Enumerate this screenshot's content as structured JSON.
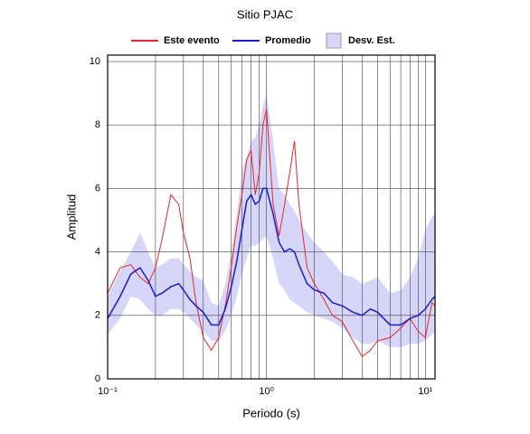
{
  "chart_data": {
    "type": "line",
    "title": "Sitio PJAC",
    "x_label": "Periodo (s)",
    "y_label": "Amplitud",
    "x": [
      0.1,
      0.12,
      0.14,
      0.16,
      0.18,
      0.2,
      0.22,
      0.25,
      0.28,
      0.3,
      0.33,
      0.36,
      0.4,
      0.45,
      0.5,
      0.55,
      0.6,
      0.65,
      0.7,
      0.75,
      0.8,
      0.85,
      0.9,
      0.95,
      1.0,
      1.1,
      1.2,
      1.3,
      1.4,
      1.5,
      1.6,
      1.8,
      2.0,
      2.3,
      2.6,
      3.0,
      3.5,
      4.0,
      4.5,
      5,
      6,
      7,
      8,
      9,
      10,
      11,
      11.5
    ],
    "series": [
      {
        "name": "Este evento",
        "color": "#e8262b",
        "values": [
          2.7,
          3.5,
          3.6,
          3.2,
          3.0,
          3.5,
          4.4,
          5.8,
          5.5,
          4.6,
          3.8,
          2.4,
          1.3,
          0.9,
          1.3,
          2.3,
          3.5,
          4.8,
          5.8,
          6.9,
          7.2,
          5.8,
          6.5,
          8.0,
          8.5,
          5.5,
          4.5,
          5.5,
          6.5,
          7.5,
          5.5,
          3.5,
          3.0,
          2.5,
          2.0,
          1.8,
          1.2,
          0.7,
          0.9,
          1.2,
          1.3,
          1.6,
          1.9,
          1.5,
          1.3,
          2.4,
          2.3
        ]
      },
      {
        "name": "Promedio",
        "color": "#1a1ad6",
        "values": [
          1.9,
          2.6,
          3.3,
          3.5,
          3.1,
          2.6,
          2.7,
          2.9,
          3.0,
          2.8,
          2.5,
          2.3,
          2.1,
          1.7,
          1.7,
          2.2,
          2.9,
          3.7,
          4.7,
          5.6,
          5.8,
          5.5,
          5.6,
          6.0,
          6.0,
          5.2,
          4.3,
          4.0,
          4.1,
          4.0,
          3.6,
          3.0,
          2.8,
          2.7,
          2.4,
          2.3,
          2.1,
          2.0,
          2.2,
          2.1,
          1.7,
          1.7,
          1.9,
          2.0,
          2.2,
          2.5,
          2.6
        ]
      }
    ],
    "band": {
      "name": "Desv. Est.",
      "color": "#d6d6f8",
      "lower": [
        1.4,
        1.9,
        2.6,
        2.5,
        2.2,
        2.0,
        2.0,
        2.2,
        2.2,
        2.1,
        1.9,
        1.7,
        1.5,
        1.2,
        1.2,
        1.5,
        2.0,
        2.6,
        3.3,
        3.8,
        4.2,
        4.2,
        4.3,
        4.4,
        4.5,
        3.8,
        3.0,
        2.8,
        2.5,
        2.4,
        2.3,
        2.1,
        2.0,
        1.9,
        1.8,
        1.6,
        1.3,
        1.1,
        1.1,
        1.2,
        1.0,
        1.0,
        1.1,
        1.1,
        1.2,
        1.4,
        1.5
      ],
      "upper": [
        2.6,
        3.4,
        4.0,
        4.6,
        4.0,
        3.5,
        3.6,
        3.8,
        3.8,
        3.6,
        3.4,
        3.2,
        3.1,
        2.4,
        2.3,
        3.0,
        4.0,
        5.2,
        6.5,
        7.0,
        7.5,
        7.6,
        8.0,
        8.6,
        9.0,
        7.5,
        6.0,
        5.8,
        5.5,
        5.3,
        5.0,
        4.6,
        4.3,
        4.0,
        3.7,
        3.3,
        3.2,
        3.0,
        3.1,
        3.2,
        2.7,
        2.8,
        3.2,
        3.8,
        4.7,
        5.1,
        5.2
      ]
    },
    "log_x": true,
    "xlim": [
      0.1,
      11.5
    ],
    "ylim": [
      0,
      10.2
    ],
    "xticks": [
      {
        "value": 0.1,
        "label": "10⁻¹"
      },
      {
        "value": 1,
        "label": "10⁰"
      },
      {
        "value": 10,
        "label": "10¹"
      }
    ],
    "xminorticks": [
      0.2,
      0.3,
      0.4,
      0.5,
      0.6,
      0.7,
      0.8,
      0.9,
      2,
      3,
      4,
      5,
      6,
      7,
      8,
      9
    ],
    "yticks": [
      0,
      2,
      4,
      6,
      8,
      10
    ],
    "grid": true
  }
}
